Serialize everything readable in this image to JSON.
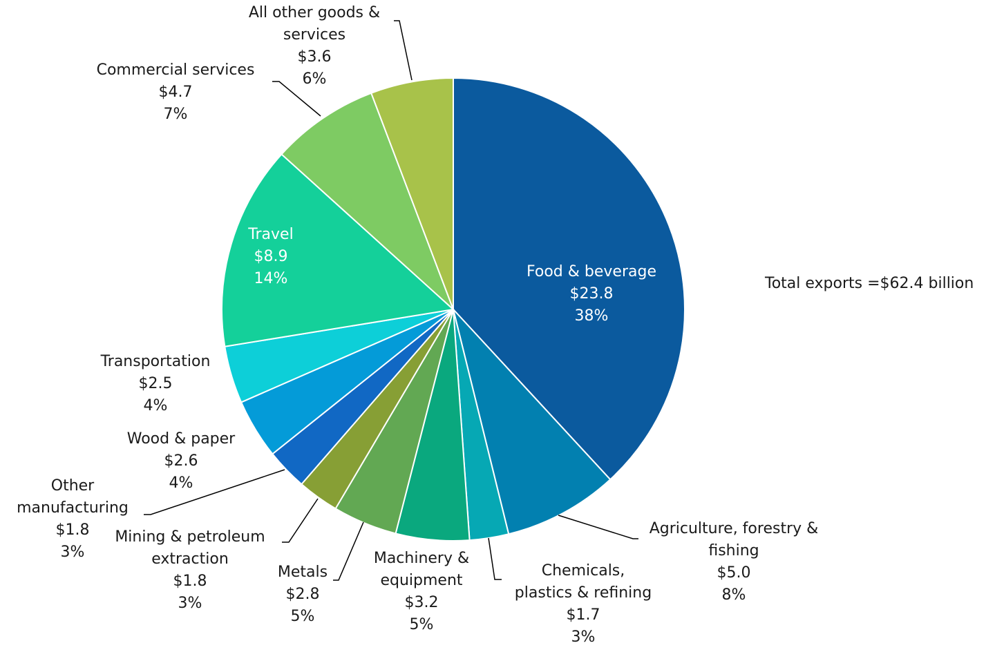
{
  "chart_data": {
    "type": "pie",
    "start_angle": "12 o'clock",
    "direction": "clockwise",
    "unit_note": "",
    "total_label": "Total exports =$62.4 billion",
    "slices": [
      {
        "name_lines": [
          "Food & beverage"
        ],
        "value": 23.8,
        "value_label": "$23.8",
        "pct_label": "38%",
        "color": "#0b5a9e",
        "label_inside": true
      },
      {
        "name_lines": [
          "Agriculture, forestry &",
          "fishing"
        ],
        "value": 5.0,
        "value_label": "$5.0",
        "pct_label": "8%",
        "color": "#0280b0",
        "label_inside": false
      },
      {
        "name_lines": [
          "Chemicals,",
          "plastics & refining"
        ],
        "value": 1.7,
        "value_label": "$1.7",
        "pct_label": "3%",
        "color": "#06a8b4",
        "label_inside": false
      },
      {
        "name_lines": [
          "Machinery &",
          "equipment"
        ],
        "value": 3.2,
        "value_label": "$3.2",
        "pct_label": "5%",
        "color": "#0aa87e",
        "label_inside": false
      },
      {
        "name_lines": [
          "Metals"
        ],
        "value": 2.8,
        "value_label": "$2.8",
        "pct_label": "5%",
        "color": "#62a853",
        "label_inside": false
      },
      {
        "name_lines": [
          "Mining & petroleum",
          "extraction"
        ],
        "value": 1.8,
        "value_label": "$1.8",
        "pct_label": "3%",
        "color": "#879f35",
        "label_inside": false
      },
      {
        "name_lines": [
          "Other",
          "manufacturing"
        ],
        "value": 1.8,
        "value_label": "$1.8",
        "pct_label": "3%",
        "color": "#1168c4",
        "label_inside": false
      },
      {
        "name_lines": [
          "Wood & paper"
        ],
        "value": 2.6,
        "value_label": "$2.6",
        "pct_label": "4%",
        "color": "#049bd8",
        "label_inside": false
      },
      {
        "name_lines": [
          "Transportation"
        ],
        "value": 2.5,
        "value_label": "$2.5",
        "pct_label": "4%",
        "color": "#0dcfd8",
        "label_inside": false
      },
      {
        "name_lines": [
          "Travel"
        ],
        "value": 8.9,
        "value_label": "$8.9",
        "pct_label": "14%",
        "color": "#14d09a",
        "label_inside": true
      },
      {
        "name_lines": [
          "Commercial services"
        ],
        "value": 4.7,
        "value_label": "$4.7",
        "pct_label": "7%",
        "color": "#7ecb63",
        "label_inside": false
      },
      {
        "name_lines": [
          "All other goods &",
          "services"
        ],
        "value": 3.6,
        "value_label": "$3.6",
        "pct_label": "6%",
        "color": "#a8c24a",
        "label_inside": false
      }
    ]
  }
}
